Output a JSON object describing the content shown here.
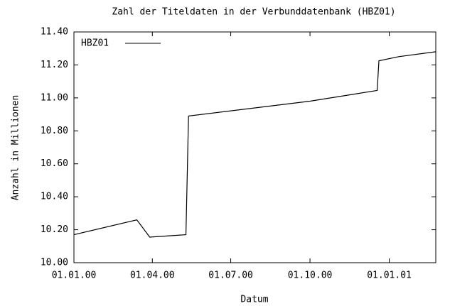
{
  "chart_data": {
    "type": "line",
    "title": "Zahl der Titeldaten in der Verbunddatenbank (HBZ01)",
    "x_label": "Datum",
    "y_label": "Anzahl in Millionen",
    "x": [
      "2000-01-01",
      "2000-03-14",
      "2000-03-29",
      "2000-05-10",
      "2000-05-13",
      "2000-10-01",
      "2000-12-18",
      "2000-12-20",
      "2001-01-12",
      "2001-02-24"
    ],
    "series": [
      {
        "name": "HBZ01",
        "color": "#000000",
        "values": [
          10.17,
          10.26,
          10.155,
          10.17,
          10.89,
          10.98,
          11.045,
          11.225,
          11.25,
          11.28
        ]
      }
    ],
    "xlim": [
      "2000-01-01",
      "2001-02-24"
    ],
    "xticks": [
      {
        "value": "2000-01-01",
        "label": "01.01.00"
      },
      {
        "value": "2000-04-01",
        "label": "01.04.00"
      },
      {
        "value": "2000-07-01",
        "label": "01.07.00"
      },
      {
        "value": "2000-10-01",
        "label": "01.10.00"
      },
      {
        "value": "2001-01-01",
        "label": "01.01.01"
      }
    ],
    "ylim": [
      10,
      11.4
    ],
    "yticks": [
      {
        "value": 10,
        "label": "10.00"
      },
      {
        "value": 10.2,
        "label": "10.20"
      },
      {
        "value": 10.4,
        "label": "10.40"
      },
      {
        "value": 10.6,
        "label": "10.60"
      },
      {
        "value": 10.8,
        "label": "10.80"
      },
      {
        "value": 11,
        "label": "11.00"
      },
      {
        "value": 11.2,
        "label": "11.20"
      },
      {
        "value": 11.4,
        "label": "11.40"
      }
    ],
    "legend": "top-left",
    "grid": false
  }
}
